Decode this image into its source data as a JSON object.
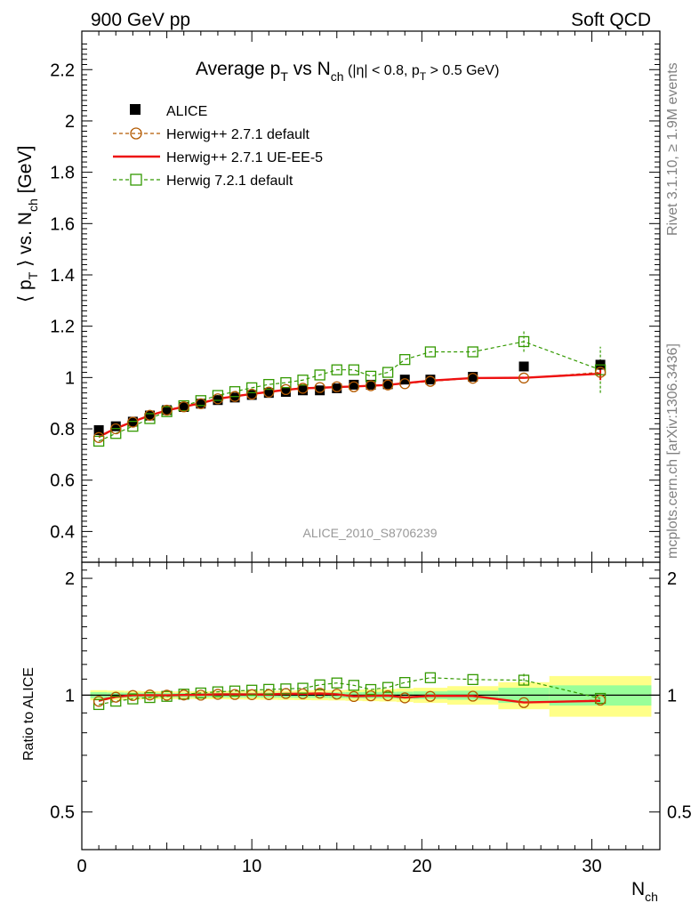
{
  "header": {
    "left": "900 GeV pp",
    "right": "Soft QCD"
  },
  "title": {
    "main_prefix": "Average p",
    "sub_T": "T",
    "vs": " vs N",
    "sub_ch": "ch",
    "cuts": " (|η| < 0.8, p",
    "cuts_sub": "T",
    "cuts_end": " > 0.5 GeV)"
  },
  "ylabel_top": {
    "pre": "⟨ p",
    "sub": "T",
    "mid": " ⟩ vs. N",
    "sub2": "ch",
    "post": " [GeV]"
  },
  "ylabel_bottom": "Ratio to ALICE",
  "xlabel": {
    "main": "N",
    "sub": "ch"
  },
  "side_texts": {
    "rivet": "Rivet 3.1.10, ≥ 1.9M events",
    "mcplots": "mcplots.cern.ch [arXiv:1306.3436]"
  },
  "analysis_id": "ALICE_2010_S8706239",
  "legend": [
    {
      "key": "alice",
      "label": "ALICE"
    },
    {
      "key": "h271",
      "label": "Herwig++ 2.7.1 default"
    },
    {
      "key": "ue",
      "label": "Herwig++ 2.7.1 UE-EE-5"
    },
    {
      "key": "h721",
      "label": "Herwig 7.2.1 default"
    }
  ],
  "colors": {
    "alice": "#000000",
    "h271": "#b35900",
    "ue": "#ee1111",
    "h721": "#339900",
    "band_inner": "#99ff99",
    "band_outer": "#ffff88"
  },
  "chart_data": {
    "type": "scatter",
    "x_range": [
      0,
      34
    ],
    "top_ylim": [
      0.28,
      2.35
    ],
    "bottom_ylim": [
      0.4,
      2.2
    ],
    "bottom_log_scale": true,
    "x_ticks": [
      "0",
      "10",
      "20",
      "30"
    ],
    "top_y_ticks": [
      "0.4",
      "0.6",
      "0.8",
      "1",
      "1.2",
      "1.4",
      "1.6",
      "1.8",
      "2",
      "2.2"
    ],
    "bottom_y_ticks": [
      "0.5",
      "1",
      "2"
    ],
    "series": [
      {
        "name": "ALICE",
        "x": [
          1,
          2,
          3,
          4,
          5,
          6,
          7,
          8,
          9,
          10,
          11,
          12,
          13,
          14,
          15,
          16,
          17,
          18,
          19,
          20.5,
          23,
          26,
          30.5
        ],
        "y": [
          0.795,
          0.81,
          0.828,
          0.852,
          0.873,
          0.885,
          0.898,
          0.912,
          0.922,
          0.932,
          0.94,
          0.944,
          0.95,
          0.95,
          0.958,
          0.972,
          0.972,
          0.974,
          0.992,
          0.992,
          1.003,
          1.043,
          1.05
        ]
      },
      {
        "name": "Herwig++ 2.7.1 default",
        "x": [
          1,
          2,
          3,
          4,
          5,
          6,
          7,
          8,
          9,
          10,
          11,
          12,
          13,
          14,
          15,
          16,
          17,
          18,
          19,
          20.5,
          23,
          26,
          30.5
        ],
        "y": [
          0.766,
          0.8,
          0.826,
          0.853,
          0.873,
          0.886,
          0.898,
          0.917,
          0.926,
          0.935,
          0.943,
          0.953,
          0.958,
          0.961,
          0.964,
          0.964,
          0.968,
          0.971,
          0.976,
          0.985,
          0.997,
          0.998,
          1.02
        ]
      },
      {
        "name": "Herwig++ 2.7.1 UE-EE-5",
        "x": [
          1,
          2,
          3,
          4,
          5,
          6,
          7,
          8,
          9,
          10,
          11,
          12,
          13,
          14,
          15,
          16,
          17,
          18,
          19,
          20.5,
          23,
          26,
          30.5
        ],
        "y": [
          0.77,
          0.802,
          0.828,
          0.852,
          0.872,
          0.886,
          0.9,
          0.917,
          0.927,
          0.936,
          0.944,
          0.952,
          0.958,
          0.96,
          0.963,
          0.965,
          0.968,
          0.971,
          0.978,
          0.988,
          0.998,
          0.999,
          1.015
        ]
      },
      {
        "name": "Herwig 7.2.1 default",
        "x": [
          1,
          2,
          3,
          4,
          5,
          6,
          7,
          8,
          9,
          10,
          11,
          12,
          13,
          14,
          15,
          16,
          17,
          18,
          19,
          20.5,
          23,
          26,
          30.5
        ],
        "y": [
          0.752,
          0.782,
          0.81,
          0.84,
          0.867,
          0.89,
          0.91,
          0.93,
          0.945,
          0.96,
          0.973,
          0.98,
          0.99,
          1.01,
          1.03,
          1.03,
          1.005,
          1.02,
          1.07,
          1.1,
          1.1,
          1.14,
          1.03
        ]
      }
    ],
    "ratio": {
      "h271": [
        0.964,
        0.988,
        0.998,
        1.001,
        1.0,
        1.001,
        1.0,
        1.005,
        1.004,
        1.003,
        1.003,
        1.01,
        1.008,
        1.012,
        1.006,
        0.992,
        0.996,
        0.997,
        0.984,
        0.993,
        0.994,
        0.957,
        0.971
      ],
      "ue": [
        0.969,
        0.99,
        1.0,
        1.0,
        0.999,
        1.001,
        1.002,
        1.005,
        1.005,
        1.004,
        1.004,
        1.008,
        1.008,
        1.01,
        1.005,
        0.993,
        0.996,
        0.997,
        0.986,
        0.996,
        0.995,
        0.958,
        0.967
      ],
      "h721": [
        0.946,
        0.965,
        0.978,
        0.986,
        0.993,
        1.006,
        1.013,
        1.02,
        1.025,
        1.03,
        1.035,
        1.038,
        1.042,
        1.063,
        1.075,
        1.06,
        1.034,
        1.047,
        1.078,
        1.109,
        1.097,
        1.093,
        0.981
      ]
    },
    "error_band": {
      "x_edges": [
        [
          0.5,
          1.5
        ],
        [
          1.5,
          2.5
        ],
        [
          2.5,
          3.5
        ],
        [
          3.5,
          4.5
        ],
        [
          4.5,
          5.5
        ],
        [
          5.5,
          6.5
        ],
        [
          6.5,
          7.5
        ],
        [
          7.5,
          8.5
        ],
        [
          8.5,
          9.5
        ],
        [
          9.5,
          10.5
        ],
        [
          10.5,
          11.5
        ],
        [
          11.5,
          12.5
        ],
        [
          12.5,
          13.5
        ],
        [
          13.5,
          14.5
        ],
        [
          14.5,
          15.5
        ],
        [
          15.5,
          16.5
        ],
        [
          16.5,
          17.5
        ],
        [
          17.5,
          18.5
        ],
        [
          18.5,
          19.5
        ],
        [
          19.5,
          21.5
        ],
        [
          21.5,
          24.5
        ],
        [
          24.5,
          27.5
        ],
        [
          27.5,
          33.5
        ]
      ],
      "inner": [
        0.018,
        0.016,
        0.015,
        0.014,
        0.013,
        0.013,
        0.013,
        0.013,
        0.014,
        0.014,
        0.015,
        0.015,
        0.016,
        0.016,
        0.017,
        0.018,
        0.019,
        0.02,
        0.021,
        0.023,
        0.027,
        0.045,
        0.06
      ],
      "outer": [
        0.03,
        0.028,
        0.026,
        0.024,
        0.023,
        0.023,
        0.023,
        0.024,
        0.025,
        0.026,
        0.027,
        0.028,
        0.029,
        0.03,
        0.031,
        0.033,
        0.035,
        0.037,
        0.04,
        0.045,
        0.055,
        0.08,
        0.12
      ]
    }
  }
}
